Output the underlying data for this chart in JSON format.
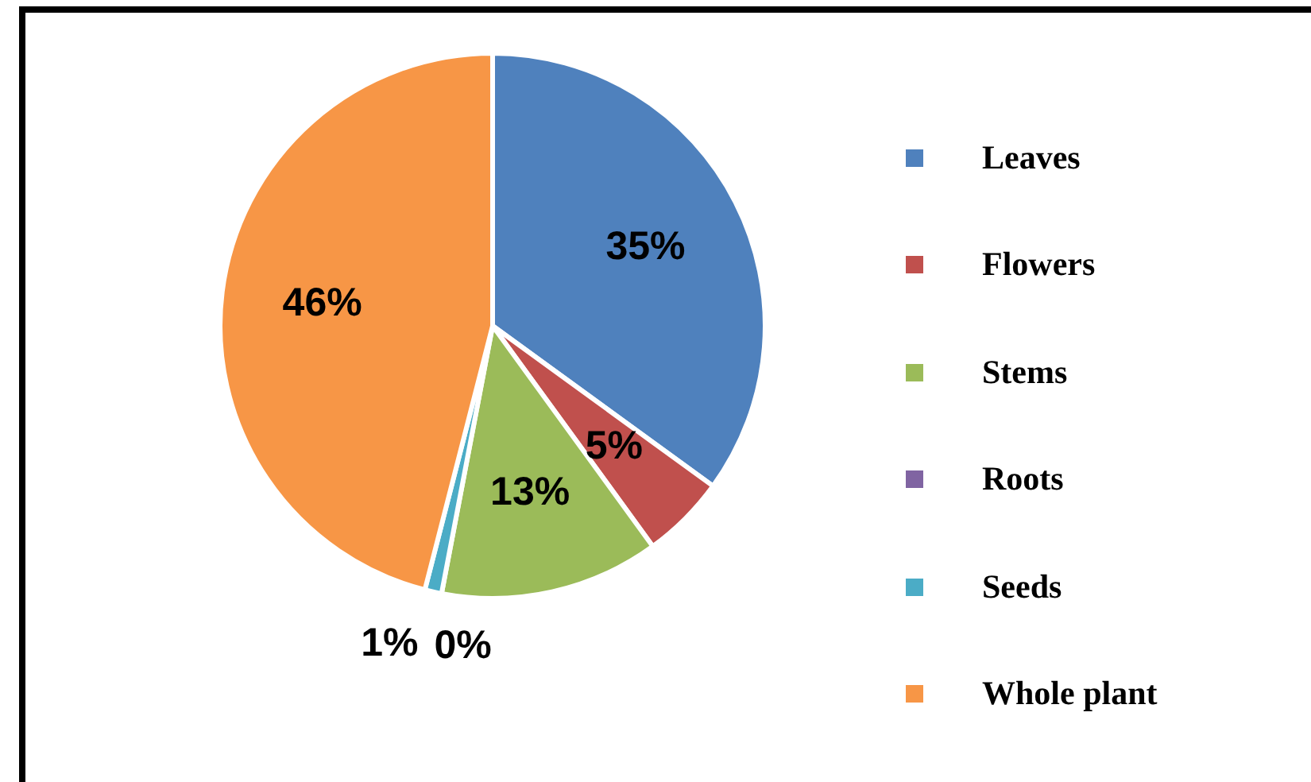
{
  "chart_data": {
    "type": "pie",
    "categories": [
      "Leaves",
      "Flowers",
      "Stems",
      "Roots",
      "Seeds",
      "Whole plant"
    ],
    "values": [
      35,
      5,
      13,
      0,
      1,
      46
    ],
    "colors": [
      "#4f81bd",
      "#c0504d",
      "#9bbb59",
      "#8064a2",
      "#4bacc6",
      "#f79646"
    ],
    "value_labels": [
      "35%",
      "5%",
      "13%",
      "0%",
      "1%",
      "46%"
    ],
    "legend": "right"
  }
}
